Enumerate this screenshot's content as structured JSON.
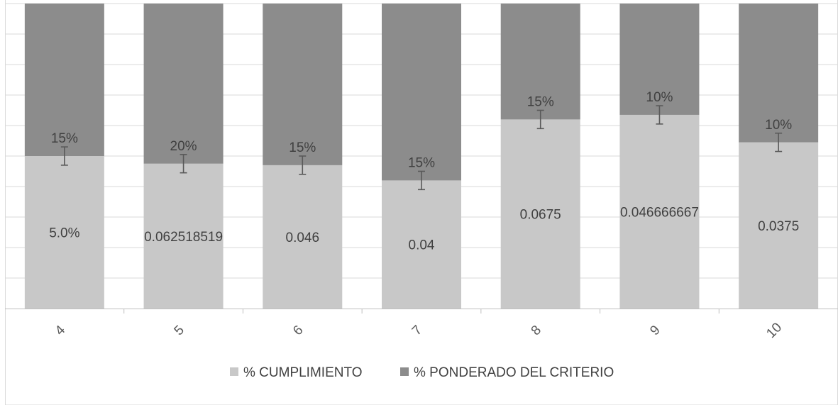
{
  "chart_data": {
    "type": "bar",
    "stacked": true,
    "categories": [
      "4",
      "5",
      "6",
      "7",
      "8",
      "9",
      "10"
    ],
    "ylim": [
      0,
      1
    ],
    "grid": true,
    "legend_position": "bottom",
    "series": [
      {
        "name": "% CUMPLIMIENTO",
        "color": "#c8c8c8",
        "values": [
          0.5,
          0.475,
          0.47,
          0.42,
          0.62,
          0.635,
          0.545
        ],
        "labels": [
          "5.0%",
          "0.062518519",
          "0.046",
          "0.04",
          "0.0675",
          "0.046666667",
          "0.0375"
        ]
      },
      {
        "name": "% PONDERADO DEL CRITERIO",
        "color": "#8c8c8c",
        "values": [
          0.5,
          0.525,
          0.53,
          0.58,
          0.38,
          0.365,
          0.455
        ],
        "labels": [
          "15%",
          "20%",
          "15%",
          "15%",
          "15%",
          "10%",
          "10%"
        ]
      }
    ],
    "error_bars": [
      0.03,
      0.03,
      0.03,
      0.03,
      0.03,
      0.03,
      0.03
    ]
  }
}
